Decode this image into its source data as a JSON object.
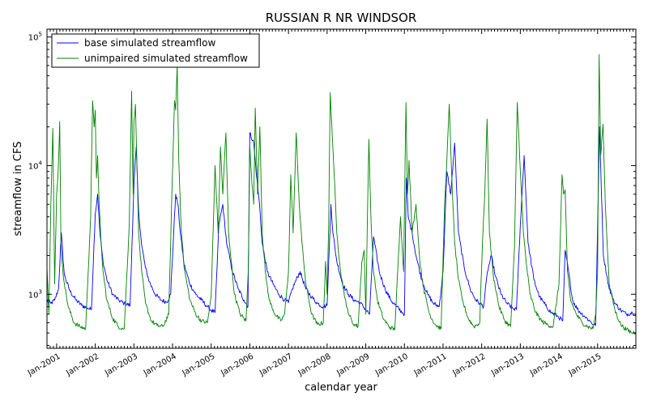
{
  "chart_data": {
    "type": "line",
    "title": "RUSSIAN R NR WINDSOR",
    "xlabel": "calendar year",
    "ylabel": "streamflow in CFS",
    "yscale": "log",
    "ylim": [
      380,
      115000
    ],
    "xlim": [
      2000.75,
      2015.99
    ],
    "yticks": [
      {
        "value": 1000,
        "base": "10",
        "exp": "3"
      },
      {
        "value": 10000,
        "base": "10",
        "exp": "4"
      },
      {
        "value": 100000,
        "base": "10",
        "exp": "5"
      }
    ],
    "xticks": [
      {
        "value": 2001.0,
        "label": "Jan-2001"
      },
      {
        "value": 2002.0,
        "label": "Jan-2002"
      },
      {
        "value": 2003.0,
        "label": "Jan-2003"
      },
      {
        "value": 2004.0,
        "label": "Jan-2004"
      },
      {
        "value": 2005.0,
        "label": "Jan-2005"
      },
      {
        "value": 2006.0,
        "label": "Jan-2006"
      },
      {
        "value": 2007.0,
        "label": "Jan-2007"
      },
      {
        "value": 2008.0,
        "label": "Jan-2008"
      },
      {
        "value": 2009.0,
        "label": "Jan-2009"
      },
      {
        "value": 2010.0,
        "label": "Jan-2010"
      },
      {
        "value": 2011.0,
        "label": "Jan-2011"
      },
      {
        "value": 2012.0,
        "label": "Jan-2012"
      },
      {
        "value": 2013.0,
        "label": "Jan-2013"
      },
      {
        "value": 2014.0,
        "label": "Jan-2014"
      },
      {
        "value": 2015.0,
        "label": "Jan-2015"
      }
    ],
    "legend_position": "upper-left",
    "series": [
      {
        "name": "base simulated streamflow",
        "color": "#0000ff",
        "x": [
          2000.75,
          2000.85,
          2000.95,
          2001.05,
          2001.12,
          2001.2,
          2001.35,
          2001.5,
          2001.65,
          2001.8,
          2001.9,
          2002.0,
          2002.06,
          2002.12,
          2002.2,
          2002.3,
          2002.45,
          2002.6,
          2002.75,
          2002.9,
          2003.0,
          2003.06,
          2003.12,
          2003.2,
          2003.3,
          2003.4,
          2003.55,
          2003.7,
          2003.85,
          2003.95,
          2004.08,
          2004.14,
          2004.2,
          2004.3,
          2004.45,
          2004.6,
          2004.75,
          2004.9,
          2005.0,
          2005.1,
          2005.2,
          2005.3,
          2005.4,
          2005.55,
          2005.7,
          2005.85,
          2005.95,
          2006.0,
          2006.1,
          2006.18,
          2006.25,
          2006.32,
          2006.45,
          2006.6,
          2006.75,
          2006.9,
          2007.0,
          2007.1,
          2007.2,
          2007.3,
          2007.45,
          2007.6,
          2007.75,
          2007.9,
          2008.0,
          2008.1,
          2008.15,
          2008.25,
          2008.4,
          2008.55,
          2008.7,
          2008.85,
          2009.0,
          2009.1,
          2009.2,
          2009.35,
          2009.5,
          2009.65,
          2009.8,
          2009.95,
          2010.0,
          2010.05,
          2010.1,
          2010.2,
          2010.3,
          2010.45,
          2010.6,
          2010.75,
          2010.9,
          2011.0,
          2011.1,
          2011.2,
          2011.3,
          2011.4,
          2011.55,
          2011.7,
          2011.85,
          2011.95,
          2012.05,
          2012.15,
          2012.25,
          2012.35,
          2012.5,
          2012.65,
          2012.8,
          2012.9,
          2013.0,
          2013.1,
          2013.2,
          2013.35,
          2013.5,
          2013.65,
          2013.8,
          2013.95,
          2014.1,
          2014.16,
          2014.25,
          2014.35,
          2014.5,
          2014.65,
          2014.8,
          2014.9,
          2014.95,
          2015.05,
          2015.15,
          2015.3,
          2015.45,
          2015.6,
          2015.75,
          2015.9,
          2015.99
        ],
        "y": [
          880,
          850,
          900,
          1100,
          3000,
          1400,
          1050,
          900,
          820,
          780,
          760,
          4200,
          6000,
          3000,
          1800,
          1300,
          1000,
          900,
          850,
          820,
          7000,
          14000,
          4500,
          2400,
          1600,
          1250,
          1000,
          900,
          870,
          1000,
          6000,
          5000,
          3000,
          1700,
          1200,
          1000,
          900,
          800,
          750,
          720,
          3500,
          5000,
          2500,
          1500,
          1100,
          900,
          800,
          18000,
          15000,
          8000,
          5000,
          2500,
          1500,
          1200,
          1000,
          900,
          860,
          1100,
          1300,
          1500,
          1100,
          950,
          850,
          800,
          820,
          5000,
          3000,
          1800,
          1200,
          1000,
          900,
          860,
          760,
          700,
          2800,
          1500,
          1100,
          900,
          800,
          720,
          700,
          8000,
          4000,
          3000,
          2000,
          1300,
          1000,
          850,
          800,
          1500,
          9000,
          6000,
          15000,
          3000,
          1600,
          1100,
          900,
          850,
          800,
          1500,
          2000,
          1400,
          1000,
          850,
          780,
          760,
          3500,
          12000,
          2500,
          1300,
          950,
          820,
          720,
          680,
          620,
          2200,
          1500,
          900,
          750,
          680,
          620,
          580,
          570,
          20000,
          2000,
          1100,
          850,
          750,
          700,
          720,
          700
        ]
      },
      {
        "name": "unimpaired simulated streamflow",
        "color": "#008000",
        "x": [
          2000.75,
          2000.8,
          2000.85,
          2000.9,
          2000.95,
          2001.0,
          2001.04,
          2001.08,
          2001.11,
          2001.14,
          2001.2,
          2001.3,
          2001.45,
          2001.6,
          2001.75,
          2001.88,
          2001.93,
          2001.97,
          2002.0,
          2002.03,
          2002.06,
          2002.1,
          2002.15,
          2002.2,
          2002.3,
          2002.45,
          2002.6,
          2002.75,
          2002.88,
          2002.94,
          2002.98,
          2003.0,
          2003.04,
          2003.08,
          2003.12,
          2003.2,
          2003.3,
          2003.45,
          2003.6,
          2003.75,
          2003.9,
          2004.0,
          2004.05,
          2004.08,
          2004.12,
          2004.16,
          2004.22,
          2004.3,
          2004.45,
          2004.6,
          2004.75,
          2004.9,
          2005.0,
          2005.1,
          2005.18,
          2005.24,
          2005.3,
          2005.38,
          2005.45,
          2005.6,
          2005.75,
          2005.9,
          2005.96,
          2006.0,
          2006.04,
          2006.1,
          2006.14,
          2006.2,
          2006.26,
          2006.32,
          2006.4,
          2006.5,
          2006.65,
          2006.8,
          2006.9,
          2007.0,
          2007.06,
          2007.12,
          2007.2,
          2007.28,
          2007.35,
          2007.45,
          2007.6,
          2007.75,
          2007.9,
          2007.96,
          2008.0,
          2008.04,
          2008.08,
          2008.12,
          2008.18,
          2008.25,
          2008.35,
          2008.5,
          2008.65,
          2008.8,
          2008.9,
          2008.96,
          2009.0,
          2009.08,
          2009.14,
          2009.2,
          2009.3,
          2009.45,
          2009.6,
          2009.75,
          2009.9,
          2009.98,
          2010.04,
          2010.08,
          2010.12,
          2010.2,
          2010.3,
          2010.4,
          2010.5,
          2010.65,
          2010.8,
          2010.95,
          2011.04,
          2011.1,
          2011.16,
          2011.22,
          2011.3,
          2011.4,
          2011.5,
          2011.65,
          2011.8,
          2011.95,
          2012.02,
          2012.08,
          2012.14,
          2012.2,
          2012.3,
          2012.45,
          2012.6,
          2012.75,
          2012.85,
          2012.92,
          2012.97,
          2013.02,
          2013.08,
          2013.15,
          2013.25,
          2013.4,
          2013.55,
          2013.7,
          2013.85,
          2014.0,
          2014.08,
          2014.12,
          2014.16,
          2014.22,
          2014.3,
          2014.45,
          2014.6,
          2014.75,
          2014.88,
          2014.95,
          2015.0,
          2015.04,
          2015.08,
          2015.14,
          2015.2,
          2015.3,
          2015.45,
          2015.6,
          2015.75,
          2015.9,
          2015.99
        ],
        "y": [
          1600,
          700,
          5000,
          19500,
          1200,
          6000,
          9000,
          22000,
          2500,
          1800,
          1200,
          800,
          600,
          560,
          540,
          4000,
          32000,
          20000,
          27000,
          8000,
          12000,
          5000,
          2500,
          1500,
          900,
          650,
          560,
          540,
          3500,
          38000,
          6000,
          22000,
          30000,
          10000,
          3000,
          1500,
          850,
          620,
          570,
          560,
          700,
          9000,
          32000,
          27000,
          60000,
          11000,
          3500,
          1600,
          900,
          700,
          620,
          600,
          950,
          10000,
          3000,
          14000,
          6000,
          18000,
          3000,
          1000,
          700,
          620,
          1500,
          14000,
          8500,
          5000,
          28000,
          6000,
          20000,
          3000,
          1500,
          900,
          700,
          620,
          700,
          1500,
          8500,
          3000,
          18000,
          5000,
          2500,
          1200,
          700,
          580,
          600,
          1800,
          1000,
          3500,
          37000,
          21000,
          9000,
          3000,
          1500,
          800,
          600,
          560,
          1800,
          2200,
          700,
          16000,
          3500,
          1500,
          900,
          650,
          560,
          530,
          4000,
          1500,
          31000,
          6000,
          11000,
          3000,
          5000,
          1800,
          1100,
          700,
          580,
          540,
          5000,
          11000,
          30000,
          9000,
          2500,
          1300,
          900,
          650,
          560,
          600,
          2500,
          6000,
          23000,
          3000,
          1400,
          800,
          620,
          560,
          2300,
          31000,
          15000,
          7000,
          3000,
          1800,
          1000,
          720,
          620,
          580,
          560,
          1200,
          8500,
          6000,
          6500,
          1500,
          900,
          700,
          600,
          560,
          540,
          700,
          1500,
          73000,
          12000,
          21000,
          5000,
          1200,
          750,
          580,
          530,
          500,
          510
        ]
      }
    ]
  }
}
